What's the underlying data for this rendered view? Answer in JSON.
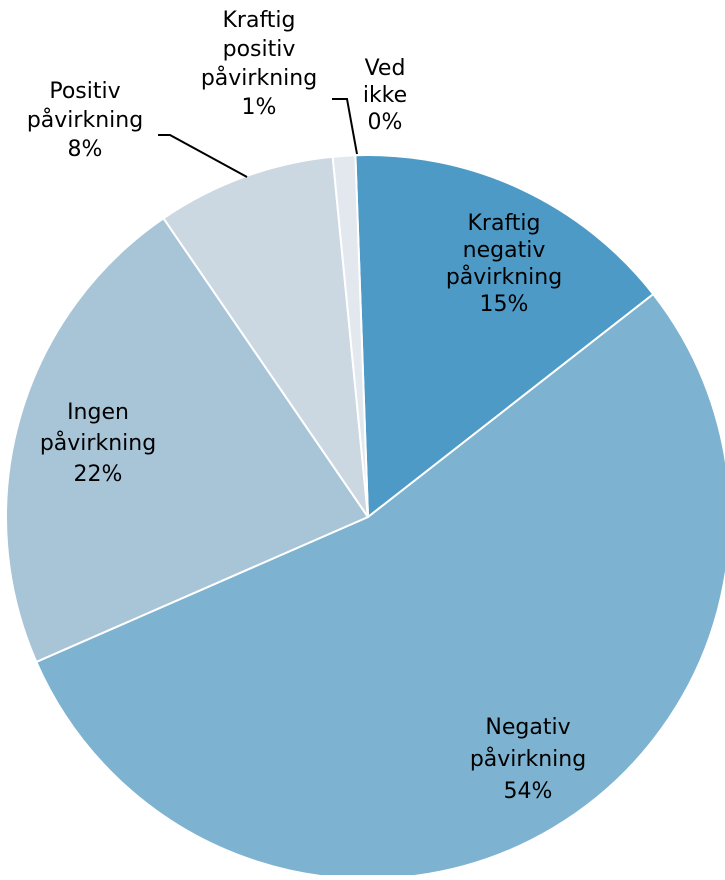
{
  "chart_data": {
    "type": "pie",
    "title": "",
    "slices": [
      {
        "label_lines": [
          "Ved",
          "ikke"
        ],
        "value": 0,
        "value_label": "0%",
        "color": "#4a8bb8"
      },
      {
        "label_lines": [
          "Kraftig",
          "negativ",
          "påvirkning"
        ],
        "value": 15,
        "value_label": "15%",
        "color": "#4e9ac6"
      },
      {
        "label_lines": [
          "Negativ",
          "påvirkning"
        ],
        "value": 54,
        "value_label": "54%",
        "color": "#7db2d0"
      },
      {
        "label_lines": [
          "Ingen",
          "påvirkning"
        ],
        "value": 22,
        "value_label": "22%",
        "color": "#a8c5d8"
      },
      {
        "label_lines": [
          "Positiv",
          "påvirkning"
        ],
        "value": 8,
        "value_label": "8%",
        "color": "#ccd8e1"
      },
      {
        "label_lines": [
          "Kraftig",
          "positiv",
          "påvirkning"
        ],
        "value": 1,
        "value_label": "1%",
        "color": "#e2e8ee"
      }
    ],
    "legend": "none"
  }
}
